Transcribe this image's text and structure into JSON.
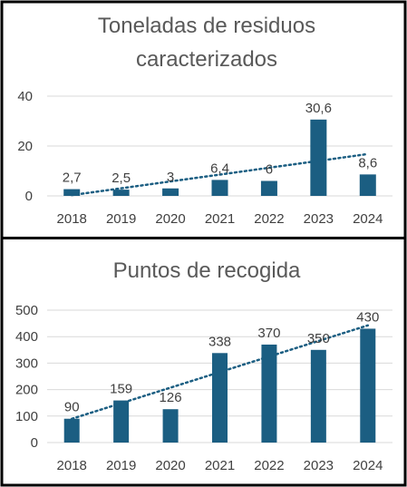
{
  "colors": {
    "bar": "#1b5e82",
    "trend": "#1b5e82",
    "grid": "#d9d9d9",
    "text": "#404040",
    "title": "#595959",
    "border": "#000000",
    "background": "#ffffff"
  },
  "chart_data": [
    {
      "type": "bar",
      "title_lines": [
        "Toneladas de residuos",
        "caracterizados"
      ],
      "categories": [
        "2018",
        "2019",
        "2020",
        "2021",
        "2022",
        "2023",
        "2024"
      ],
      "values": [
        2.7,
        2.5,
        3,
        6.4,
        6,
        30.6,
        8.6
      ],
      "data_labels": [
        "2,7",
        "2,5",
        "3",
        "6,4",
        "6",
        "30,6",
        "8,6"
      ],
      "y_ticks": [
        "0",
        "20",
        "40"
      ],
      "ylim": [
        0,
        40
      ],
      "grid": true,
      "trendline": "linear, dotted"
    },
    {
      "type": "bar",
      "title_lines": [
        "Puntos de recogida"
      ],
      "categories": [
        "2018",
        "2019",
        "2020",
        "2021",
        "2022",
        "2023",
        "2024"
      ],
      "values": [
        90,
        159,
        126,
        338,
        370,
        350,
        430
      ],
      "data_labels": [
        "90",
        "159",
        "126",
        "338",
        "370",
        "350",
        "430"
      ],
      "y_ticks": [
        "0",
        "100",
        "200",
        "300",
        "400",
        "500"
      ],
      "ylim": [
        0,
        500
      ],
      "grid": true,
      "trendline": "linear, dotted"
    }
  ]
}
